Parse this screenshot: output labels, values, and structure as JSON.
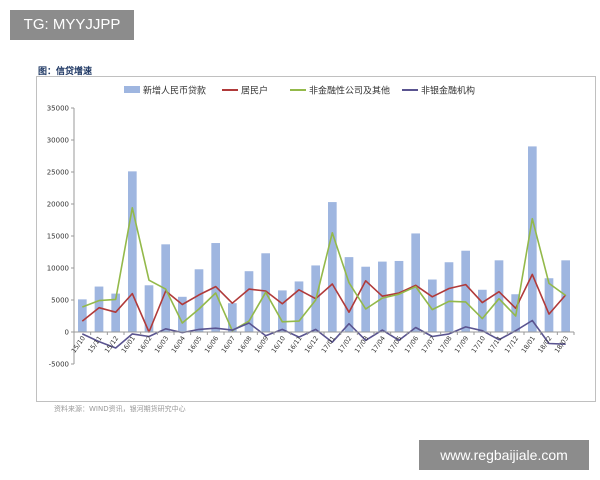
{
  "watermark_top": "TG: MYYJJPP",
  "watermark_bottom": "www.regbaijiale.com",
  "figure_title": "图：信贷增速",
  "source_note": "资料来源：WIND资讯，银河期货研究中心",
  "colors": {
    "bar": "#9fb6e0",
    "resident": "#b03a3a",
    "nonfin_company": "#93b94a",
    "nonbank": "#5a5490"
  },
  "chart_data": {
    "type": "bar",
    "title": "",
    "xlabel": "",
    "ylabel": "",
    "ylim": [
      -5000,
      35000
    ],
    "yticks": [
      -5000,
      0,
      5000,
      10000,
      15000,
      20000,
      25000,
      30000,
      35000
    ],
    "grid": false,
    "legend_position": "top",
    "categories": [
      "15/10",
      "15/11",
      "15/12",
      "16/01",
      "16/02",
      "16/03",
      "16/04",
      "16/05",
      "16/06",
      "16/07",
      "16/08",
      "16/09",
      "16/10",
      "16/11",
      "16/12",
      "17/01",
      "17/02",
      "17/03",
      "17/04",
      "17/05",
      "17/06",
      "17/07",
      "17/08",
      "17/09",
      "17/10",
      "17/11",
      "17/12",
      "18/01",
      "18/02",
      "18/03"
    ],
    "series": [
      {
        "name": "新增人民币贷款",
        "type": "bar",
        "values": [
          5100,
          7100,
          6000,
          25100,
          7300,
          13700,
          5500,
          9800,
          13900,
          4500,
          9500,
          12300,
          6500,
          7900,
          10400,
          20300,
          11700,
          10200,
          11000,
          11100,
          15400,
          8200,
          10900,
          12700,
          6600,
          11200,
          5900,
          29000,
          8400,
          11200
        ]
      },
      {
        "name": "居民户",
        "type": "line",
        "values": [
          1700,
          3800,
          3100,
          6000,
          0,
          6400,
          4300,
          5800,
          7100,
          4500,
          6700,
          6400,
          4400,
          6600,
          5200,
          7500,
          3100,
          8000,
          5600,
          6100,
          7300,
          5500,
          6800,
          7400,
          4600,
          6300,
          3700,
          9000,
          2800,
          5800
        ]
      },
      {
        "name": "非金融性公司及其他",
        "type": "line",
        "values": [
          3900,
          4900,
          5100,
          19400,
          8100,
          6700,
          1400,
          3600,
          6100,
          200,
          1700,
          6200,
          1600,
          1700,
          5000,
          15500,
          7700,
          3600,
          5300,
          5900,
          7100,
          3500,
          4800,
          4700,
          2100,
          5200,
          2500,
          17700,
          7600,
          5700
        ]
      },
      {
        "name": "非银金融机构",
        "type": "line",
        "values": [
          -300,
          -1500,
          -2500,
          -300,
          -700,
          500,
          -100,
          400,
          600,
          300,
          1400,
          -600,
          400,
          -800,
          400,
          -1600,
          1300,
          -1300,
          300,
          -1300,
          700,
          -700,
          -300,
          800,
          200,
          -1200,
          200,
          1800,
          -1800,
          -1900
        ]
      }
    ]
  }
}
